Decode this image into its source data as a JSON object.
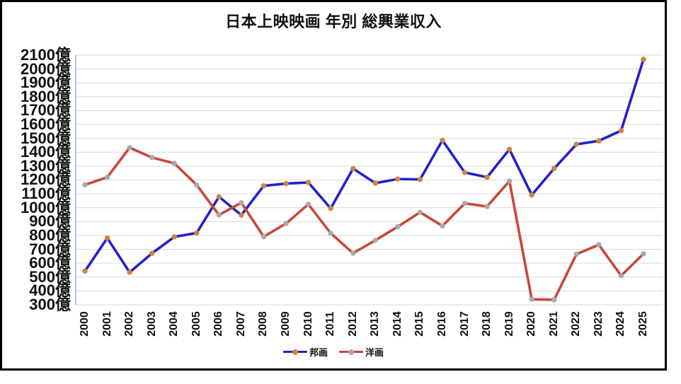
{
  "chart_data": {
    "type": "line",
    "title": "日本上映映画 年別 総興業収入",
    "xlabel": "",
    "ylabel": "",
    "y_unit": "億",
    "ylim": [
      300,
      2100
    ],
    "grid": "horizontal",
    "legend_position": "bottom-center",
    "x": [
      "2000",
      "2001",
      "2002",
      "2003",
      "2004",
      "2005",
      "2006",
      "2007",
      "2008",
      "2009",
      "2010",
      "2011",
      "2012",
      "2013",
      "2014",
      "2015",
      "2016",
      "2017",
      "2018",
      "2019",
      "2020",
      "2021",
      "2022",
      "2023",
      "2024",
      "2025"
    ],
    "y_ticks": [
      "2100億",
      "2000億",
      "1900億",
      "1800億",
      "1700億",
      "1600億",
      "1500億",
      "1400億",
      "1300億",
      "1200億",
      "1100億",
      "1000億",
      "900億",
      "800億",
      "700億",
      "600億",
      "500億",
      "400億",
      "300億"
    ],
    "series": [
      {
        "id": "houga",
        "name": "邦画",
        "line_color": "#2121cc",
        "marker_color": "#d0843f",
        "values": [
          543,
          781,
          534,
          671,
          790,
          818,
          1079,
          947,
          1158,
          1174,
          1182,
          995,
          1282,
          1177,
          1207,
          1204,
          1486,
          1254,
          1220,
          1421,
          1092,
          1283,
          1457,
          1482,
          1556,
          2070
        ]
      },
      {
        "id": "youga",
        "name": "洋画",
        "line_color": "#c8473b",
        "marker_color": "#a9a9a9",
        "values": [
          1165,
          1220,
          1433,
          1362,
          1320,
          1164,
          948,
          1036,
          791,
          886,
          1025,
          816,
          672,
          765,
          863,
          967,
          869,
          1031,
          1009,
          1192,
          340,
          336,
          665,
          733,
          510,
          668
        ]
      }
    ],
    "colors": {
      "grid": "#d9d9d9",
      "axis_left": "#8fafd1",
      "frame_border": "#000000",
      "background": "#ffffff"
    }
  }
}
